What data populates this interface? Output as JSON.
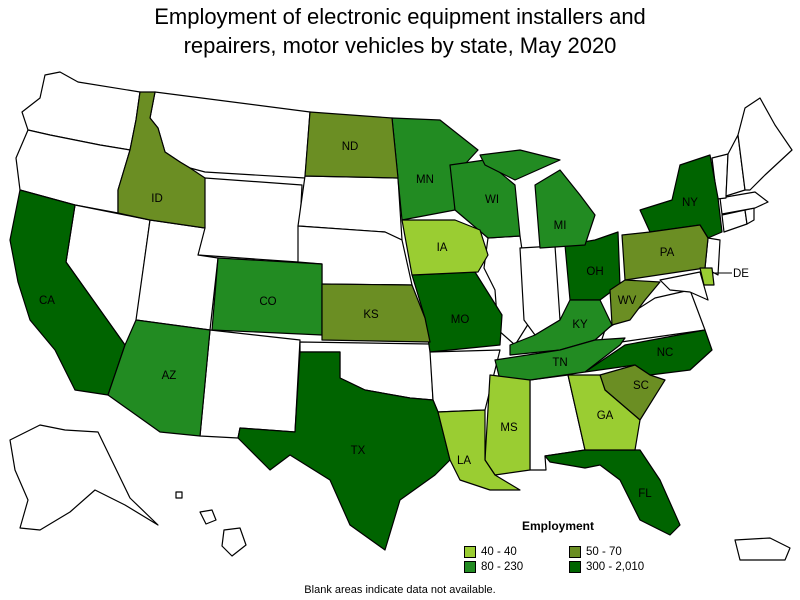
{
  "title_line1": "Employment of electronic equipment installers and",
  "title_line2": "repairers, motor vehicles by state, May 2020",
  "legend": {
    "title": "Employment",
    "items": [
      {
        "label": "40 - 40",
        "color": "#9acd32"
      },
      {
        "label": "50 - 70",
        "color": "#6b8e23"
      },
      {
        "label": "80 - 230",
        "color": "#228b22"
      },
      {
        "label": "300 - 2,010",
        "color": "#006400"
      }
    ]
  },
  "footnote": "Blank areas indicate data not available.",
  "colors": {
    "no_data": "#ffffff",
    "tier1": "#9acd32",
    "tier2": "#6b8e23",
    "tier3": "#228b22",
    "tier4": "#006400"
  },
  "states": [
    {
      "abbr": "CA",
      "tier": "300 - 2,010"
    },
    {
      "abbr": "TX",
      "tier": "300 - 2,010"
    },
    {
      "abbr": "FL",
      "tier": "300 - 2,010"
    },
    {
      "abbr": "NY",
      "tier": "300 - 2,010"
    },
    {
      "abbr": "OH",
      "tier": "300 - 2,010"
    },
    {
      "abbr": "MO",
      "tier": "300 - 2,010"
    },
    {
      "abbr": "NC",
      "tier": "300 - 2,010"
    },
    {
      "abbr": "MN",
      "tier": "80 - 230"
    },
    {
      "abbr": "WI",
      "tier": "80 - 230"
    },
    {
      "abbr": "MI",
      "tier": "80 - 230"
    },
    {
      "abbr": "CO",
      "tier": "80 - 230"
    },
    {
      "abbr": "AZ",
      "tier": "80 - 230"
    },
    {
      "abbr": "KY",
      "tier": "80 - 230"
    },
    {
      "abbr": "TN",
      "tier": "80 - 230"
    },
    {
      "abbr": "ND",
      "tier": "50 - 70"
    },
    {
      "abbr": "ID",
      "tier": "50 - 70"
    },
    {
      "abbr": "KS",
      "tier": "50 - 70"
    },
    {
      "abbr": "PA",
      "tier": "50 - 70"
    },
    {
      "abbr": "WV",
      "tier": "50 - 70"
    },
    {
      "abbr": "SC",
      "tier": "50 - 70"
    },
    {
      "abbr": "IA",
      "tier": "40 - 40"
    },
    {
      "abbr": "MS",
      "tier": "40 - 40"
    },
    {
      "abbr": "LA",
      "tier": "40 - 40"
    },
    {
      "abbr": "GA",
      "tier": "40 - 40"
    },
    {
      "abbr": "DE",
      "tier": "40 - 40"
    }
  ]
}
